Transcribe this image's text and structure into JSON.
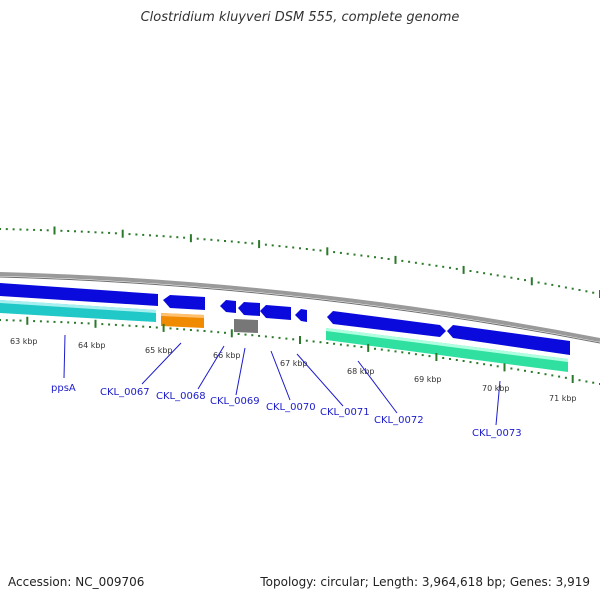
{
  "title": "Clostridium kluyveri DSM 555, complete genome",
  "footer": {
    "accession": "Accession: NC_009706",
    "stats": "Topology: circular; Length: 3,964,618 bp; Genes: 3,919"
  },
  "colors": {
    "backbone": "#9a9a9a",
    "cds": "#0a0adc",
    "tick": "#2a7a2a",
    "label": "#1c1ccc",
    "cyan": "#20c8c8",
    "orange": "#f08a00",
    "gray": "#777777",
    "green": "#30e0a0"
  },
  "scale_labels": [
    "63 kbp",
    "64 kbp",
    "65 kbp",
    "66 kbp",
    "67 kbp",
    "68 kbp",
    "69 kbp",
    "70 kbp",
    "71 kbp"
  ],
  "gene_labels": [
    "ppsA",
    "CKL_0067",
    "CKL_0068",
    "CKL_0069",
    "CKL_0070",
    "CKL_0071",
    "CKL_0072",
    "CKL_0073"
  ]
}
